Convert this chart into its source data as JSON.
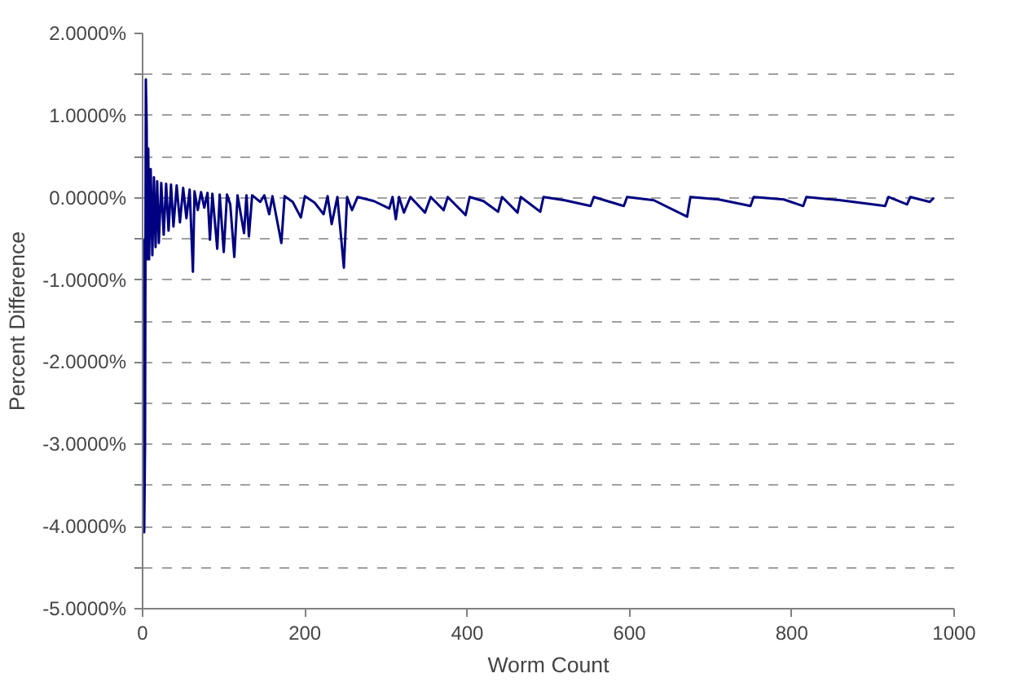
{
  "chart_data": {
    "type": "line",
    "xlabel": "Worm Count",
    "ylabel": "Percent Difference",
    "xlim": [
      0,
      1000
    ],
    "xticks": [
      0,
      200,
      400,
      600,
      800,
      1000
    ],
    "ylim": [
      -5,
      2
    ],
    "yticks": [
      {
        "value": 2,
        "label": "2.0000%"
      },
      {
        "value": 1.5,
        "label": null
      },
      {
        "value": 1,
        "label": "1.0000%"
      },
      {
        "value": 0.5,
        "label": null
      },
      {
        "value": 0,
        "label": "0.0000%"
      },
      {
        "value": -0.5,
        "label": null
      },
      {
        "value": -1,
        "label": "-1.0000%"
      },
      {
        "value": -1.5,
        "label": null
      },
      {
        "value": -2,
        "label": "-2.0000%"
      },
      {
        "value": -2.5,
        "label": null
      },
      {
        "value": -3,
        "label": "-3.0000%"
      },
      {
        "value": -3.5,
        "label": null
      },
      {
        "value": -4,
        "label": "-4.0000%"
      },
      {
        "value": -4.5,
        "label": null
      },
      {
        "value": -5,
        "label": "-5.0000%"
      }
    ],
    "grid": "y",
    "marker": "none",
    "line_style": "solid",
    "series": [
      {
        "color": "#000080",
        "x": [
          1,
          2,
          3,
          4,
          5,
          6,
          7,
          8,
          10,
          12,
          14,
          16,
          18,
          20,
          23,
          26,
          29,
          32,
          35,
          38,
          42,
          46,
          50,
          54,
          58,
          62,
          64,
          68,
          72,
          76,
          80,
          83,
          86,
          92,
          95,
          100,
          104,
          108,
          113,
          117,
          125,
          128,
          131,
          135,
          145,
          150,
          156,
          160,
          171,
          175,
          185,
          195,
          200,
          212,
          223,
          228,
          233,
          240,
          248,
          252,
          258,
          265,
          285,
          304,
          308,
          312,
          316,
          322,
          330,
          348,
          355,
          371,
          376,
          398,
          403,
          420,
          438,
          443,
          462,
          466,
          490,
          494,
          520,
          552,
          556,
          593,
          597,
          630,
          671,
          675,
          710,
          749,
          753,
          790,
          814,
          818,
          860,
          915,
          919,
          942,
          946,
          970,
          975
        ],
        "values": [
          -0.5,
          -4.07,
          -3.0,
          1.44,
          0.9,
          -0.75,
          0.6,
          -0.75,
          0.35,
          -0.7,
          0.25,
          -0.6,
          0.2,
          -0.55,
          0.18,
          -0.45,
          0.17,
          -0.4,
          0.16,
          -0.35,
          0.15,
          -0.3,
          0.12,
          -0.25,
          0.1,
          -0.9,
          0.08,
          -0.15,
          0.07,
          -0.12,
          0.06,
          -0.51,
          0.05,
          -0.62,
          0.04,
          -0.66,
          0.04,
          -0.08,
          -0.72,
          0.03,
          -0.43,
          0.03,
          -0.47,
          0.03,
          -0.05,
          0.03,
          -0.2,
          0.02,
          -0.55,
          0.02,
          -0.05,
          -0.24,
          0.02,
          -0.06,
          -0.2,
          0.02,
          -0.32,
          0.01,
          -0.85,
          0.01,
          -0.15,
          0.01,
          -0.04,
          -0.13,
          0.01,
          -0.26,
          0.01,
          -0.18,
          0.01,
          -0.18,
          0.01,
          -0.15,
          0.01,
          -0.21,
          0.01,
          -0.04,
          -0.17,
          0.01,
          -0.18,
          0.01,
          -0.17,
          0.01,
          -0.03,
          -0.1,
          0.01,
          -0.1,
          0.01,
          -0.03,
          -0.23,
          0.01,
          -0.02,
          -0.1,
          0.01,
          -0.02,
          -0.1,
          0.01,
          -0.03,
          -0.1,
          0.01,
          -0.08,
          0.01,
          -0.05,
          0.0
        ]
      }
    ]
  }
}
